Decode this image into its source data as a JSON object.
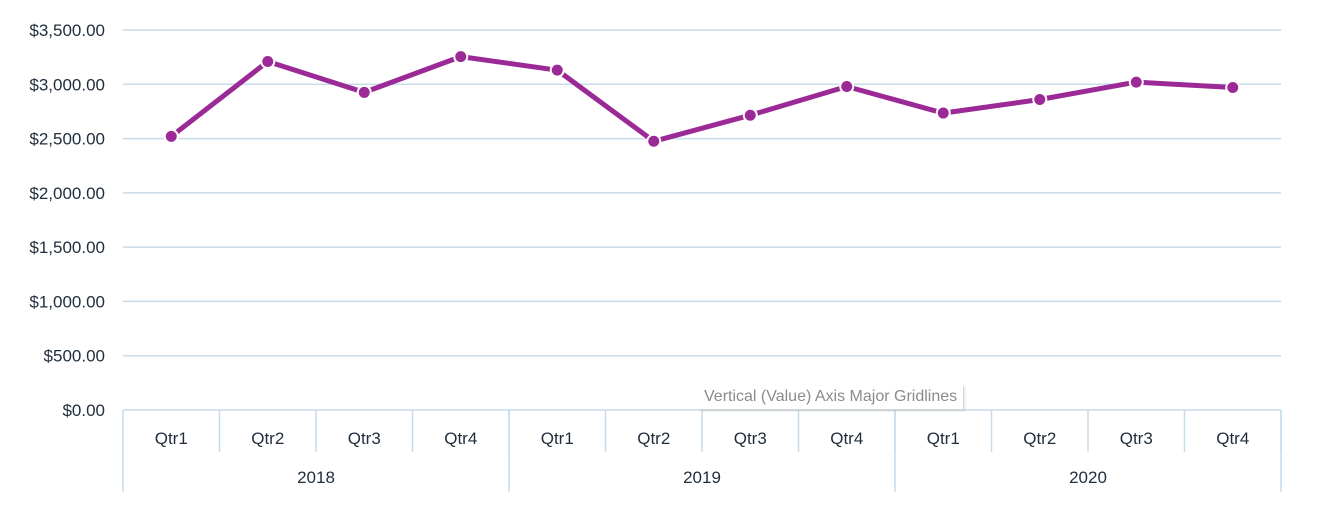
{
  "colors": {
    "series": "#9b2a96",
    "marker_stroke": "#ffffff",
    "gridline": "#c7dceb",
    "axis": "#c7dceb",
    "text": "#1f2d3d"
  },
  "tooltip": {
    "text": "Vertical (Value) Axis Major Gridlines"
  },
  "chart_data": {
    "type": "line",
    "title": "",
    "xlabel": "",
    "ylabel": "",
    "ylim": [
      0,
      3500
    ],
    "y_ticks": [
      "$0.00",
      "$500.00",
      "$1,000.00",
      "$1,500.00",
      "$2,000.00",
      "$2,500.00",
      "$3,000.00",
      "$3,500.00"
    ],
    "grid": true,
    "legend": "none",
    "categories": [
      "Qtr1",
      "Qtr2",
      "Qtr3",
      "Qtr4",
      "Qtr1",
      "Qtr2",
      "Qtr3",
      "Qtr4",
      "Qtr1",
      "Qtr2",
      "Qtr3",
      "Qtr4"
    ],
    "groups": [
      {
        "label": "2018",
        "count": 4
      },
      {
        "label": "2019",
        "count": 4
      },
      {
        "label": "2020",
        "count": 4
      }
    ],
    "series": [
      {
        "values": [
          2520,
          3210,
          2925,
          3255,
          3130,
          2475,
          2715,
          2980,
          2735,
          2860,
          3020,
          2970
        ]
      }
    ]
  }
}
